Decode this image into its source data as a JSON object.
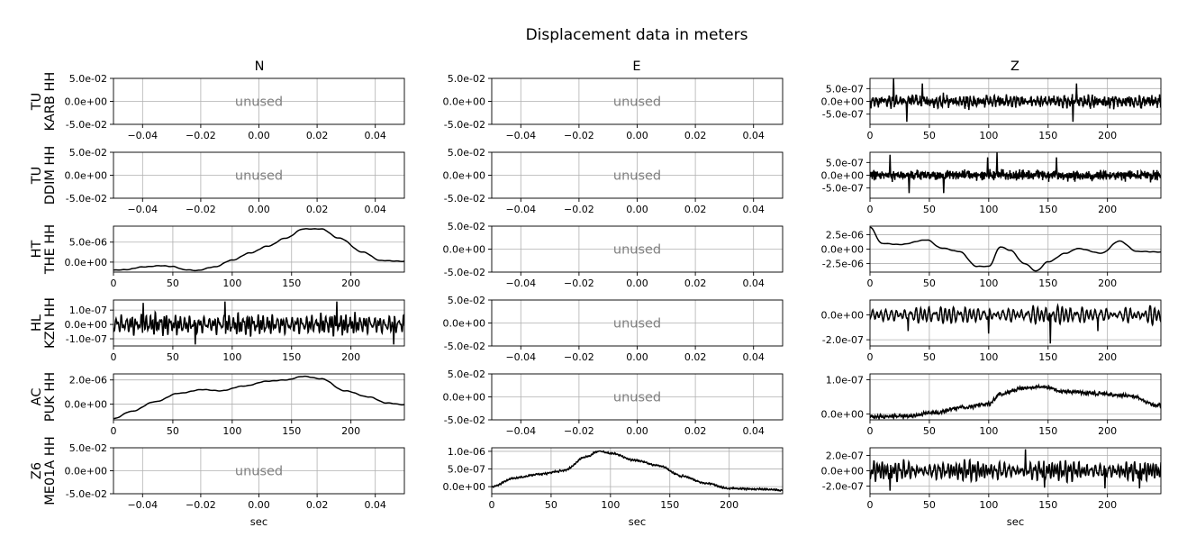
{
  "figure_title": "Displacement data in meters",
  "column_titles": [
    "N",
    "E",
    "Z"
  ],
  "unused_label": "unused",
  "x_axis_label": "sec",
  "rows": [
    {
      "network": "TU",
      "station": "KARB HH"
    },
    {
      "network": "TU",
      "station": "DDIM HH"
    },
    {
      "network": "HT",
      "station": "THE HH"
    },
    {
      "network": "HL",
      "station": "KZN HH"
    },
    {
      "network": "AC",
      "station": "PUK HH"
    },
    {
      "network": "Z6",
      "station": "ME01A HH"
    }
  ],
  "colors": {
    "trace": "#000000",
    "grid": "#b0b0b0",
    "unused_text": "#808080",
    "axes": "#000000"
  },
  "chart_data": {
    "type": "line",
    "title": "Displacement data in meters",
    "layout": "grid of 6 rows x 3 columns",
    "grid": true,
    "unused_axes": {
      "xlim": [
        -0.05,
        0.05
      ],
      "xticks": [
        -0.04,
        -0.02,
        0.0,
        0.02,
        0.04
      ],
      "xtick_labels": [
        "−0.04",
        "−0.02",
        "0.00",
        "0.02",
        "0.04"
      ],
      "ylim": [
        -0.05,
        0.05
      ],
      "yticks": [
        -0.05,
        0.0,
        0.05
      ],
      "ytick_labels": [
        "-5.0e-02",
        "0.0e+00",
        "5.0e-02"
      ]
    },
    "panels": [
      {
        "row": 0,
        "col": "N",
        "unused": true
      },
      {
        "row": 0,
        "col": "E",
        "unused": true
      },
      {
        "row": 0,
        "col": "Z",
        "unused": false,
        "xlim": [
          0,
          245
        ],
        "ylim": [
          -9e-07,
          9e-07
        ],
        "yticks": [
          -5e-07,
          0,
          5e-07
        ],
        "ytick_labels": [
          "-5.0e-07",
          "0.0e+00",
          "5.0e-07"
        ],
        "signal": "noise",
        "amplitude": 3.5e-07,
        "spikes": [
          [
            20,
            9e-07
          ],
          [
            31,
            -8e-07
          ],
          [
            44,
            7e-07
          ],
          [
            171,
            -8e-07
          ],
          [
            174,
            7e-07
          ]
        ]
      },
      {
        "row": 1,
        "col": "N",
        "unused": true
      },
      {
        "row": 1,
        "col": "E",
        "unused": true
      },
      {
        "row": 1,
        "col": "Z",
        "unused": false,
        "xlim": [
          0,
          245
        ],
        "ylim": [
          -9e-07,
          9e-07
        ],
        "yticks": [
          -5e-07,
          0,
          5e-07
        ],
        "ytick_labels": [
          "-5.0e-07",
          "0.0e+00",
          "5.0e-07"
        ],
        "signal": "noise",
        "amplitude": 3.5e-07,
        "spikes": [
          [
            17,
            8e-07
          ],
          [
            33,
            -7e-07
          ],
          [
            62,
            -7e-07
          ],
          [
            99,
            7e-07
          ],
          [
            107,
            9e-07
          ],
          [
            157,
            7e-07
          ]
        ]
      },
      {
        "row": 2,
        "col": "N",
        "unused": false,
        "xlim": [
          0,
          245
        ],
        "ylim": [
          -2.5e-06,
          9e-06
        ],
        "yticks": [
          0,
          5e-06
        ],
        "ytick_labels": [
          "0.0e+00",
          "5.0e-06"
        ],
        "signal": "smooth",
        "points": [
          [
            0,
            -2e-06
          ],
          [
            10,
            -1.9e-06
          ],
          [
            25,
            -1.2e-06
          ],
          [
            40,
            -9e-07
          ],
          [
            50,
            -1.1e-06
          ],
          [
            60,
            -1.9e-06
          ],
          [
            70,
            -2.1e-06
          ],
          [
            85,
            -1.2e-06
          ],
          [
            100,
            5e-07
          ],
          [
            115,
            2.3e-06
          ],
          [
            130,
            4e-06
          ],
          [
            145,
            6e-06
          ],
          [
            160,
            8.3e-06
          ],
          [
            175,
            8.3e-06
          ],
          [
            190,
            6e-06
          ],
          [
            210,
            2.5e-06
          ],
          [
            225,
            4e-07
          ],
          [
            245,
            2e-07
          ]
        ]
      },
      {
        "row": 2,
        "col": "E",
        "unused": true
      },
      {
        "row": 2,
        "col": "Z",
        "unused": false,
        "xlim": [
          0,
          245
        ],
        "ylim": [
          -4e-06,
          4e-06
        ],
        "yticks": [
          -2.5e-06,
          0,
          2.5e-06
        ],
        "ytick_labels": [
          "-2.5e-06",
          "0.0e+00",
          "2.5e-06"
        ],
        "signal": "smooth",
        "points": [
          [
            0,
            3.8e-06
          ],
          [
            10,
            1e-06
          ],
          [
            25,
            8e-07
          ],
          [
            48,
            1.6e-06
          ],
          [
            60,
            2e-07
          ],
          [
            75,
            -4e-07
          ],
          [
            90,
            -3e-06
          ],
          [
            100,
            -3e-06
          ],
          [
            110,
            4e-07
          ],
          [
            118,
            -2e-07
          ],
          [
            130,
            -2.5e-06
          ],
          [
            140,
            -3.8e-06
          ],
          [
            150,
            -2.2e-06
          ],
          [
            165,
            -7e-07
          ],
          [
            175,
            1e-07
          ],
          [
            195,
            -7e-07
          ],
          [
            210,
            1.4e-06
          ],
          [
            225,
            -4e-07
          ],
          [
            245,
            -5e-07
          ]
        ]
      },
      {
        "row": 3,
        "col": "N",
        "unused": false,
        "xlim": [
          0,
          245
        ],
        "ylim": [
          -1.5e-07,
          1.7e-07
        ],
        "yticks": [
          -1e-07,
          0,
          1e-07
        ],
        "ytick_labels": [
          "-1.0e-07",
          "0.0e+00",
          "1.0e-07"
        ],
        "signal": "oscillation",
        "amplitude": 7e-08,
        "spikes": [
          [
            25,
            1.5e-07
          ],
          [
            69,
            -1.4e-07
          ],
          [
            94,
            1.6e-07
          ],
          [
            188,
            1.6e-07
          ],
          [
            236,
            -1.4e-07
          ]
        ]
      },
      {
        "row": 3,
        "col": "E",
        "unused": true
      },
      {
        "row": 3,
        "col": "Z",
        "unused": false,
        "xlim": [
          0,
          245
        ],
        "ylim": [
          -2.5e-07,
          1.2e-07
        ],
        "yticks": [
          -2e-07,
          0
        ],
        "ytick_labels": [
          "-2.0e-07",
          "0.0e+00"
        ],
        "signal": "oscillation",
        "amplitude": 6e-08,
        "offset": 0,
        "spikes": [
          [
            32,
            -1.3e-07
          ],
          [
            100,
            -1.5e-07
          ],
          [
            152,
            -2.3e-07
          ],
          [
            192,
            -1.3e-07
          ]
        ]
      },
      {
        "row": 4,
        "col": "N",
        "unused": false,
        "xlim": [
          0,
          245
        ],
        "ylim": [
          -1.3e-06,
          2.5e-06
        ],
        "yticks": [
          0,
          2e-06
        ],
        "ytick_labels": [
          "0.0e+00",
          "2.0e-06"
        ],
        "signal": "smooth",
        "points": [
          [
            0,
            -1.2e-06
          ],
          [
            15,
            -6e-07
          ],
          [
            35,
            2e-07
          ],
          [
            55,
            9e-07
          ],
          [
            75,
            1.2e-06
          ],
          [
            90,
            1.1e-06
          ],
          [
            110,
            1.5e-06
          ],
          [
            130,
            1.9e-06
          ],
          [
            145,
            2e-06
          ],
          [
            160,
            2.3e-06
          ],
          [
            175,
            2.1e-06
          ],
          [
            195,
            1.1e-06
          ],
          [
            215,
            6e-07
          ],
          [
            230,
            1e-07
          ],
          [
            245,
            -5e-08
          ]
        ]
      },
      {
        "row": 4,
        "col": "E",
        "unused": true
      },
      {
        "row": 4,
        "col": "Z",
        "unused": false,
        "xlim": [
          0,
          245
        ],
        "ylim": [
          -1.7e-08,
          1.17e-07
        ],
        "yticks": [
          0,
          1e-07
        ],
        "ytick_labels": [
          "0.0e+00",
          "1.0e-07"
        ],
        "signal": "smooth_noisy",
        "noise": 6e-09,
        "points": [
          [
            0,
            -8e-09
          ],
          [
            30,
            -6e-09
          ],
          [
            55,
            5e-09
          ],
          [
            80,
            2e-08
          ],
          [
            100,
            3e-08
          ],
          [
            110,
            6e-08
          ],
          [
            130,
            7.5e-08
          ],
          [
            145,
            8e-08
          ],
          [
            165,
            6.5e-08
          ],
          [
            190,
            6e-08
          ],
          [
            215,
            5.5e-08
          ],
          [
            245,
            2.5e-08
          ]
        ]
      },
      {
        "row": 5,
        "col": "N",
        "unused": true
      },
      {
        "row": 5,
        "col": "E",
        "unused": false,
        "xlim": [
          0,
          245
        ],
        "ylim": [
          -2e-07,
          1.1e-06
        ],
        "yticks": [
          0,
          5e-07,
          1e-06
        ],
        "ytick_labels": [
          "0.0e+00",
          "5.0e-07",
          "1.0e-06"
        ],
        "signal": "smooth_noisy",
        "noise": 3e-08,
        "points": [
          [
            0,
            0
          ],
          [
            20,
            2.5e-07
          ],
          [
            40,
            3.5e-07
          ],
          [
            60,
            4.5e-07
          ],
          [
            80,
            8.5e-07
          ],
          [
            90,
            1e-06
          ],
          [
            100,
            9.5e-07
          ],
          [
            120,
            7.5e-07
          ],
          [
            140,
            6e-07
          ],
          [
            160,
            3e-07
          ],
          [
            180,
            1e-07
          ],
          [
            200,
            -5e-08
          ],
          [
            225,
            -7e-08
          ],
          [
            245,
            -1e-07
          ]
        ]
      },
      {
        "row": 5,
        "col": "Z",
        "unused": false,
        "xlim": [
          0,
          245
        ],
        "ylim": [
          -3e-07,
          3e-07
        ],
        "yticks": [
          -2e-07,
          0,
          2e-07
        ],
        "ytick_labels": [
          "-2.0e-07",
          "0.0e+00",
          "2.0e-07"
        ],
        "signal": "oscillation",
        "amplitude": 1.2e-07,
        "spikes": [
          [
            17,
            -2.6e-07
          ],
          [
            131,
            2.8e-07
          ],
          [
            147,
            -2.2e-07
          ],
          [
            198,
            -2.3e-07
          ],
          [
            227,
            -2.3e-07
          ]
        ]
      }
    ],
    "used_xticks": [
      0,
      50,
      100,
      150,
      200
    ],
    "used_xtick_labels": [
      "0",
      "50",
      "100",
      "150",
      "200"
    ]
  }
}
